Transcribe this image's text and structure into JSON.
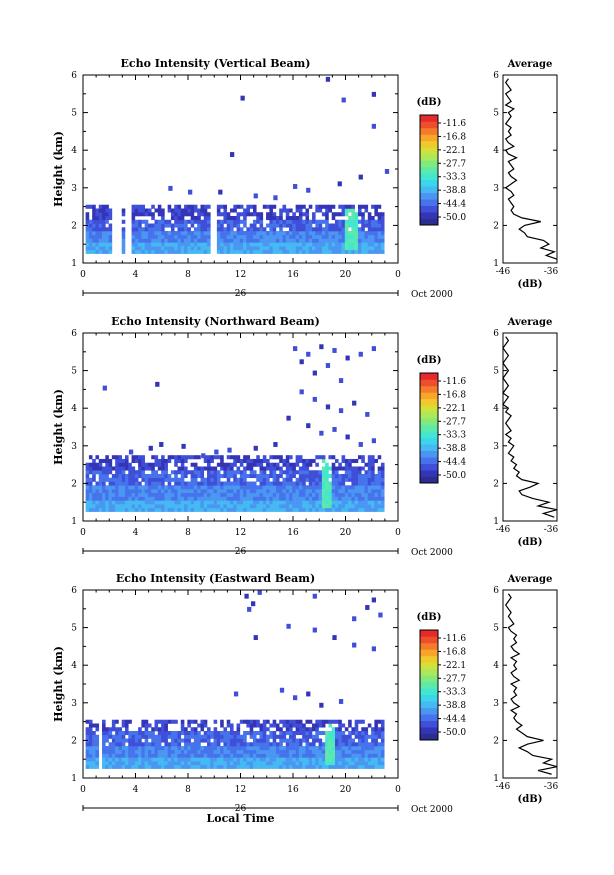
{
  "colors": {
    "scale": [
      "#2b2d8f",
      "#3434b6",
      "#3f4fd8",
      "#4673ec",
      "#4a96f2",
      "#44b9f2",
      "#3cd6ec",
      "#45e6cf",
      "#5fe9a8",
      "#84e97c",
      "#abe85a",
      "#d0e13c",
      "#f0c92d",
      "#f7a62a",
      "#f47b2a",
      "#ee4e2c",
      "#e62a2a"
    ]
  },
  "panels": [
    {
      "title": "Echo Intensity (Vertical Beam)",
      "ylabel": "Height (km)",
      "yticks": [
        "1",
        "2",
        "3",
        "4",
        "5",
        "6"
      ],
      "xticks": [
        "0",
        "4",
        "8",
        "12",
        "16",
        "20",
        "0"
      ],
      "day_label": "26",
      "date_label": "Oct 2000",
      "cb_title": "(dB)",
      "cb_labels": [
        "-11.6",
        "-16.8",
        "-22.1",
        "-27.7",
        "-33.3",
        "-38.8",
        "-44.4",
        "-50.0"
      ],
      "avg_title": "Average",
      "avg_xticks": [
        "-46",
        "-36"
      ],
      "avg_xlabel": "(dB)",
      "avg_yticks": [
        "1",
        "2",
        "3",
        "4",
        "5",
        "6"
      ]
    },
    {
      "title": "Echo Intensity (Northward Beam)",
      "ylabel": "Height (km)",
      "yticks": [
        "1",
        "2",
        "3",
        "4",
        "5",
        "6"
      ],
      "xticks": [
        "0",
        "4",
        "8",
        "12",
        "16",
        "20",
        "0"
      ],
      "day_label": "26",
      "date_label": "Oct 2000",
      "cb_title": "(dB)",
      "cb_labels": [
        "-11.6",
        "-16.8",
        "-22.1",
        "-27.7",
        "-33.3",
        "-38.8",
        "-44.4",
        "-50.0"
      ],
      "avg_title": "Average",
      "avg_xticks": [
        "-46",
        "-36"
      ],
      "avg_xlabel": "(dB)",
      "avg_yticks": [
        "1",
        "2",
        "3",
        "4",
        "5",
        "6"
      ]
    },
    {
      "title": "Echo Intensity (Eastward Beam)",
      "ylabel": "Height (km)",
      "yticks": [
        "1",
        "2",
        "3",
        "4",
        "5",
        "6"
      ],
      "xticks": [
        "0",
        "4",
        "8",
        "12",
        "16",
        "20",
        "0"
      ],
      "day_label": "26",
      "date_label": "Oct 2000",
      "cb_title": "(dB)",
      "cb_labels": [
        "-11.6",
        "-16.8",
        "-22.1",
        "-27.7",
        "-33.3",
        "-38.8",
        "-44.4",
        "-50.0"
      ],
      "avg_title": "Average",
      "avg_xticks": [
        "-46",
        "-36"
      ],
      "avg_xlabel": "(dB)",
      "avg_yticks": [
        "1",
        "2",
        "3",
        "4",
        "5",
        "6"
      ],
      "xlabel": "Local Time"
    }
  ],
  "chart_data": [
    {
      "type": "heatmap",
      "title": "Echo Intensity (Vertical Beam)",
      "xlabel": "",
      "ylabel": "Height (km)",
      "xlim": [
        0,
        24
      ],
      "ylim": [
        1,
        6
      ],
      "zlim": [
        -50.0,
        -11.6
      ],
      "z_unit": "dB",
      "echo_layer": {
        "x_range": [
          0.2,
          22.8
        ],
        "y_range": [
          1.25,
          2.55
        ],
        "dense_top_km": 2.1,
        "gaps_hours": [
          [
            2.2,
            2.8
          ],
          [
            3.0,
            3.7
          ],
          [
            9.5,
            10.1
          ]
        ],
        "peak": {
          "x": 20.3,
          "y": [
            1.3,
            2.4
          ],
          "dB": -30.0
        }
      },
      "scatter_cells": [
        [
          18.5,
          5.85
        ],
        [
          19.4,
          3.07
        ],
        [
          22.0,
          5.45
        ],
        [
          22.0,
          4.6
        ],
        [
          19.7,
          5.3
        ],
        [
          11.2,
          3.85
        ],
        [
          12.0,
          5.35
        ],
        [
          6.5,
          2.95
        ],
        [
          8.0,
          2.85
        ],
        [
          16.0,
          3.0
        ],
        [
          17.0,
          2.9
        ],
        [
          10.3,
          2.85
        ],
        [
          14.5,
          2.7
        ],
        [
          13.0,
          2.75
        ],
        [
          21.0,
          3.25
        ],
        [
          23.0,
          3.4
        ]
      ],
      "profile": {
        "x_axis": "dB",
        "xlim": [
          -46,
          -36
        ],
        "y": [
          1.1,
          1.2,
          1.3,
          1.4,
          1.5,
          1.6,
          1.7,
          1.8,
          1.9,
          2.0,
          2.1,
          2.2,
          2.3,
          2.4,
          2.5,
          2.6,
          2.7,
          2.8,
          2.9,
          3.0,
          3.1,
          3.2,
          3.3,
          3.4,
          3.5,
          3.6,
          3.7,
          3.8,
          3.9,
          4.0,
          4.1,
          4.2,
          4.3,
          4.4,
          4.5,
          4.6,
          4.7,
          4.8,
          4.9,
          5.0,
          5.1,
          5.2,
          5.3,
          5.4,
          5.5,
          5.6,
          5.7,
          5.8,
          5.9
        ],
        "x": [
          -36.0,
          -38.0,
          -36.5,
          -39.0,
          -37.5,
          -38.5,
          -41.5,
          -42.0,
          -43.0,
          -42.0,
          -39.0,
          -42.5,
          -44.0,
          -44.5,
          -44.0,
          -44.5,
          -45.0,
          -44.0,
          -44.5,
          -45.5,
          -44.5,
          -43.5,
          -44.5,
          -45.0,
          -44.0,
          -44.5,
          -45.0,
          -43.5,
          -45.0,
          -45.5,
          -44.0,
          -45.0,
          -45.5,
          -44.5,
          -45.0,
          -44.5,
          -45.5,
          -45.0,
          -44.5,
          -45.0,
          -44.0,
          -45.5,
          -44.5,
          -45.0,
          -45.5,
          -44.5,
          -45.0,
          -45.5,
          -45.0
        ]
      }
    },
    {
      "type": "heatmap",
      "title": "Echo Intensity (Northward Beam)",
      "xlabel": "",
      "ylabel": "Height (km)",
      "xlim": [
        0,
        24
      ],
      "ylim": [
        1,
        6
      ],
      "zlim": [
        -50.0,
        -11.6
      ],
      "z_unit": "dB",
      "echo_layer": {
        "x_range": [
          0.2,
          22.8
        ],
        "y_range": [
          1.25,
          2.7
        ],
        "dense_top_km": 2.3,
        "gaps_hours": [],
        "peak": {
          "x": 18.5,
          "y": [
            1.3,
            2.6
          ],
          "dB": -30.0
        }
      },
      "scatter_cells": [
        [
          1.5,
          4.5
        ],
        [
          5.5,
          4.6
        ],
        [
          5.8,
          3.0
        ],
        [
          5.0,
          2.9
        ],
        [
          3.5,
          2.8
        ],
        [
          7.5,
          2.95
        ],
        [
          9.0,
          2.7
        ],
        [
          10.0,
          2.8
        ],
        [
          11.0,
          2.85
        ],
        [
          13.0,
          2.9
        ],
        [
          14.5,
          3.0
        ],
        [
          16.0,
          5.55
        ],
        [
          16.5,
          5.2
        ],
        [
          17.0,
          5.4
        ],
        [
          17.5,
          4.9
        ],
        [
          18.0,
          5.6
        ],
        [
          18.5,
          5.1
        ],
        [
          19.0,
          5.5
        ],
        [
          19.5,
          4.7
        ],
        [
          20.0,
          5.3
        ],
        [
          21.0,
          5.4
        ],
        [
          22.0,
          5.55
        ],
        [
          16.5,
          4.4
        ],
        [
          17.5,
          4.2
        ],
        [
          18.5,
          4.0
        ],
        [
          19.5,
          3.9
        ],
        [
          20.5,
          4.1
        ],
        [
          21.5,
          3.8
        ],
        [
          15.5,
          3.7
        ],
        [
          17.0,
          3.5
        ],
        [
          18.0,
          3.3
        ],
        [
          19.0,
          3.4
        ],
        [
          20.0,
          3.2
        ],
        [
          21.0,
          3.0
        ],
        [
          22.0,
          3.1
        ]
      ],
      "profile": {
        "x_axis": "dB",
        "xlim": [
          -46,
          -36
        ],
        "y": [
          1.1,
          1.2,
          1.3,
          1.4,
          1.5,
          1.6,
          1.7,
          1.8,
          1.9,
          2.0,
          2.1,
          2.2,
          2.3,
          2.4,
          2.5,
          2.6,
          2.7,
          2.8,
          2.9,
          3.0,
          3.1,
          3.2,
          3.3,
          3.4,
          3.5,
          3.6,
          3.7,
          3.8,
          3.9,
          4.0,
          4.1,
          4.2,
          4.3,
          4.4,
          4.5,
          4.6,
          4.7,
          4.8,
          4.9,
          5.0,
          5.1,
          5.2,
          5.3,
          5.4,
          5.5,
          5.6,
          5.7,
          5.8,
          5.9
        ],
        "x": [
          -36.5,
          -38.5,
          -36.0,
          -39.5,
          -37.5,
          -40.5,
          -42.5,
          -43.0,
          -41.0,
          -39.5,
          -42.5,
          -43.5,
          -43.0,
          -44.0,
          -43.5,
          -44.5,
          -44.0,
          -45.0,
          -44.5,
          -44.0,
          -45.0,
          -44.5,
          -45.5,
          -44.5,
          -45.0,
          -45.5,
          -45.0,
          -44.5,
          -45.5,
          -45.0,
          -46.0,
          -45.5,
          -45.0,
          -46.0,
          -45.5,
          -45.0,
          -45.5,
          -46.0,
          -45.5,
          -45.0,
          -45.5,
          -46.0,
          -45.5,
          -45.0,
          -45.5,
          -46.0,
          -45.5,
          -45.0,
          -45.5
        ]
      }
    },
    {
      "type": "heatmap",
      "title": "Echo Intensity (Eastward Beam)",
      "xlabel": "Local Time",
      "ylabel": "Height (km)",
      "xlim": [
        0,
        24
      ],
      "ylim": [
        1,
        6
      ],
      "zlim": [
        -50.0,
        -11.6
      ],
      "z_unit": "dB",
      "echo_layer": {
        "x_range": [
          0.2,
          22.8
        ],
        "y_range": [
          1.25,
          2.55
        ],
        "dense_top_km": 2.2,
        "gaps_hours": [
          [
            1.2,
            1.4
          ],
          [
            2.5,
            2.7
          ]
        ],
        "peak": {
          "x": 18.6,
          "y": [
            1.3,
            2.4
          ],
          "dB": -30.0
        }
      },
      "scatter_cells": [
        [
          12.3,
          5.8
        ],
        [
          12.8,
          5.6
        ],
        [
          13.3,
          5.9
        ],
        [
          12.5,
          5.45
        ],
        [
          17.5,
          5.8
        ],
        [
          21.5,
          5.5
        ],
        [
          22.0,
          5.7
        ],
        [
          22.5,
          5.3
        ],
        [
          20.5,
          5.2
        ],
        [
          15.5,
          5.0
        ],
        [
          13.0,
          4.7
        ],
        [
          17.5,
          4.9
        ],
        [
          19.0,
          4.7
        ],
        [
          20.5,
          4.5
        ],
        [
          22.0,
          4.4
        ],
        [
          11.5,
          3.2
        ],
        [
          15.0,
          3.3
        ],
        [
          16.0,
          3.1
        ],
        [
          17.0,
          3.2
        ],
        [
          18.0,
          2.9
        ],
        [
          19.5,
          3.0
        ]
      ],
      "profile": {
        "x_axis": "dB",
        "xlim": [
          -46,
          -36
        ],
        "y": [
          1.1,
          1.2,
          1.3,
          1.4,
          1.5,
          1.6,
          1.7,
          1.8,
          1.9,
          2.0,
          2.1,
          2.2,
          2.3,
          2.4,
          2.5,
          2.6,
          2.7,
          2.8,
          2.9,
          3.0,
          3.1,
          3.2,
          3.3,
          3.4,
          3.5,
          3.6,
          3.7,
          3.8,
          3.9,
          4.0,
          4.1,
          4.2,
          4.3,
          4.4,
          4.5,
          4.6,
          4.7,
          4.8,
          4.9,
          5.0,
          5.1,
          5.2,
          5.3,
          5.4,
          5.5,
          5.6,
          5.7,
          5.8,
          5.9
        ],
        "x": [
          -37.0,
          -39.5,
          -36.0,
          -38.5,
          -37.0,
          -40.5,
          -41.5,
          -43.0,
          -41.5,
          -38.5,
          -41.5,
          -42.5,
          -43.5,
          -42.5,
          -43.5,
          -44.0,
          -43.5,
          -44.5,
          -43.0,
          -44.0,
          -44.5,
          -43.5,
          -44.0,
          -43.5,
          -44.5,
          -43.0,
          -44.0,
          -44.5,
          -43.5,
          -44.0,
          -43.5,
          -44.5,
          -43.0,
          -44.0,
          -44.5,
          -43.5,
          -44.0,
          -43.5,
          -44.5,
          -45.0,
          -44.0,
          -44.5,
          -45.0,
          -44.5,
          -45.0,
          -45.5,
          -45.0,
          -44.5,
          -45.0
        ]
      }
    }
  ]
}
